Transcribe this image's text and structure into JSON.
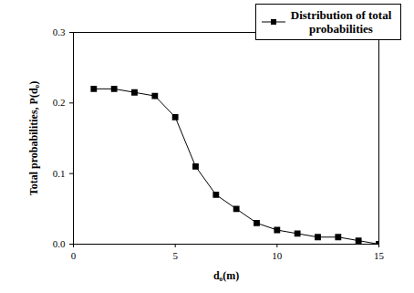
{
  "chart_data": {
    "type": "line",
    "x_label": "d₀(m)",
    "y_label": "Total probabilities, P(d₀)",
    "x": [
      1,
      2,
      3,
      4,
      5,
      6,
      7,
      8,
      9,
      10,
      11,
      12,
      13,
      14,
      15
    ],
    "series": [
      {
        "name": "Distribution of total probabilities",
        "color": "#000000",
        "marker": "square",
        "values": [
          0.22,
          0.22,
          0.215,
          0.21,
          0.18,
          0.11,
          0.07,
          0.05,
          0.03,
          0.02,
          0.015,
          0.01,
          0.01,
          0.005,
          0.0
        ]
      }
    ],
    "xlim": [
      0,
      15
    ],
    "xticks": [
      0,
      5,
      10,
      15
    ],
    "ylim": [
      0,
      0.3
    ],
    "yticks": [
      {
        "value": 0,
        "label": "0.0"
      },
      0.1,
      0.2,
      0.3
    ],
    "legend": "top-right",
    "grid": false
  }
}
